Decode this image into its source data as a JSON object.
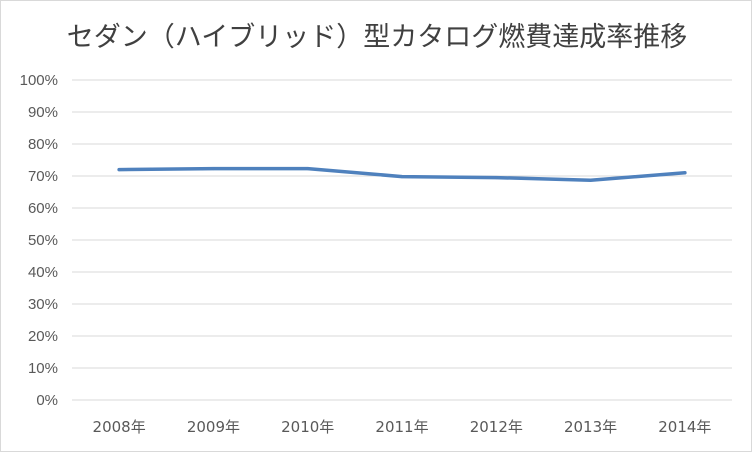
{
  "chart_data": {
    "type": "line",
    "title": "セダン（ハイブリッド）型カタログ燃費達成率推移",
    "categories": [
      "2008年",
      "2009年",
      "2010年",
      "2011年",
      "2012年",
      "2013年",
      "2014年"
    ],
    "series": [
      {
        "values": [
          72.0,
          72.3,
          72.3,
          69.8,
          69.5,
          68.7,
          71.0
        ]
      }
    ],
    "xlabel": "",
    "ylabel": "",
    "ylim": [
      0,
      100
    ],
    "yticks": [
      "0%",
      "10%",
      "20%",
      "30%",
      "40%",
      "50%",
      "60%",
      "70%",
      "80%",
      "90%",
      "100%"
    ],
    "grid": true,
    "legend": "none",
    "line_color": "#4f81bd",
    "grid_color": "#d9d9d9"
  }
}
